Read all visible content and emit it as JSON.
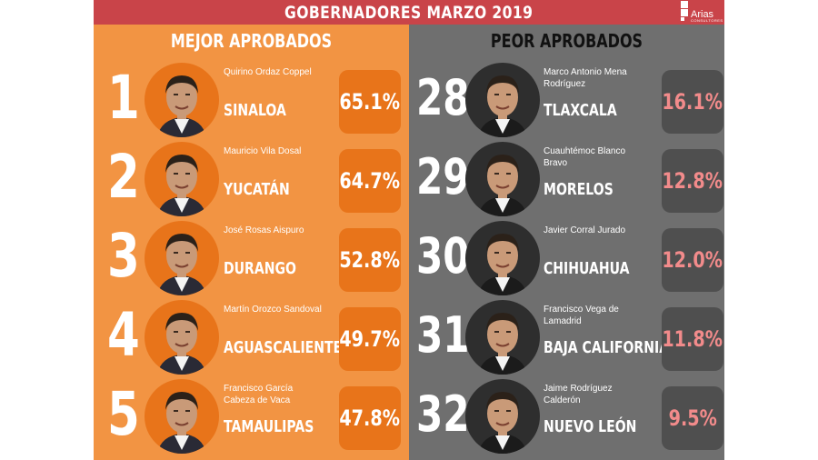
{
  "header": {
    "title": "GOBERNADORES MARZO 2019",
    "logo_text": "Arias",
    "logo_sub": "CONSULTORES"
  },
  "colors": {
    "header": "#c94449",
    "best_panel": "#f29443",
    "best_box": "#e8741a",
    "worst_panel": "#6f6f6f",
    "worst_box": "#4f4f4f",
    "worst_pct": "#f28b8b"
  },
  "best": {
    "title": "MEJOR APROBADOS",
    "items": [
      {
        "rank": "1",
        "name": "Quirino Ordaz Coppel",
        "state": "SINALOA",
        "pct": "65.1%"
      },
      {
        "rank": "2",
        "name": "Mauricio Vila Dosal",
        "state": "YUCATÁN",
        "pct": "64.7%"
      },
      {
        "rank": "3",
        "name": "José Rosas Aispuro",
        "state": "DURANGO",
        "pct": "52.8%"
      },
      {
        "rank": "4",
        "name": "Martín Orozco Sandoval",
        "state": "AGUASCALIENTES",
        "pct": "49.7%"
      },
      {
        "rank": "5",
        "name": "Francisco García Cabeza de Vaca",
        "state": "TAMAULIPAS",
        "pct": "47.8%"
      }
    ]
  },
  "worst": {
    "title": "PEOR APROBADOS",
    "items": [
      {
        "rank": "28",
        "name": "Marco Antonio Mena Rodríguez",
        "state": "TLAXCALA",
        "pct": "16.1%"
      },
      {
        "rank": "29",
        "name": "Cuauhtémoc Blanco Bravo",
        "state": "MORELOS",
        "pct": "12.8%"
      },
      {
        "rank": "30",
        "name": "Javier Corral Jurado",
        "state": "CHIHUAHUA",
        "pct": "12.0%"
      },
      {
        "rank": "31",
        "name": "Francisco Vega de Lamadrid",
        "state": "BAJA CALIFORNIA",
        "pct": "11.8%"
      },
      {
        "rank": "32",
        "name": "Jaime Rodríguez Calderón",
        "state": "NUEVO LEÓN",
        "pct": "9.5%"
      }
    ]
  }
}
